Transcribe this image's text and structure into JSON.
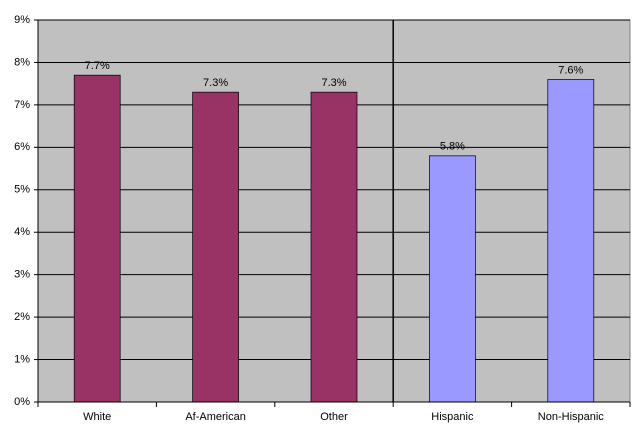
{
  "chart_data": {
    "type": "bar",
    "categories": [
      "White",
      "Af-American",
      "Other",
      "Hispanic",
      "Non-Hispanic"
    ],
    "values": [
      7.7,
      7.3,
      7.3,
      5.8,
      7.6
    ],
    "value_labels": [
      "7.7%",
      "7.3%",
      "7.3%",
      "5.8%",
      "7.6%"
    ],
    "colors": [
      "#993366",
      "#993366",
      "#993366",
      "#9999ff",
      "#9999ff"
    ],
    "ylim": [
      0,
      9
    ],
    "yticks": [
      {
        "value": 0,
        "label": "0%"
      },
      {
        "value": 1,
        "label": "1%"
      },
      {
        "value": 2,
        "label": "2%"
      },
      {
        "value": 3,
        "label": "3%"
      },
      {
        "value": 4,
        "label": "4%"
      },
      {
        "value": 5,
        "label": "5%"
      },
      {
        "value": 6,
        "label": "6%"
      },
      {
        "value": 7,
        "label": "7%"
      },
      {
        "value": 8,
        "label": "8%"
      },
      {
        "value": 9,
        "label": "9%"
      }
    ],
    "grid": true
  }
}
